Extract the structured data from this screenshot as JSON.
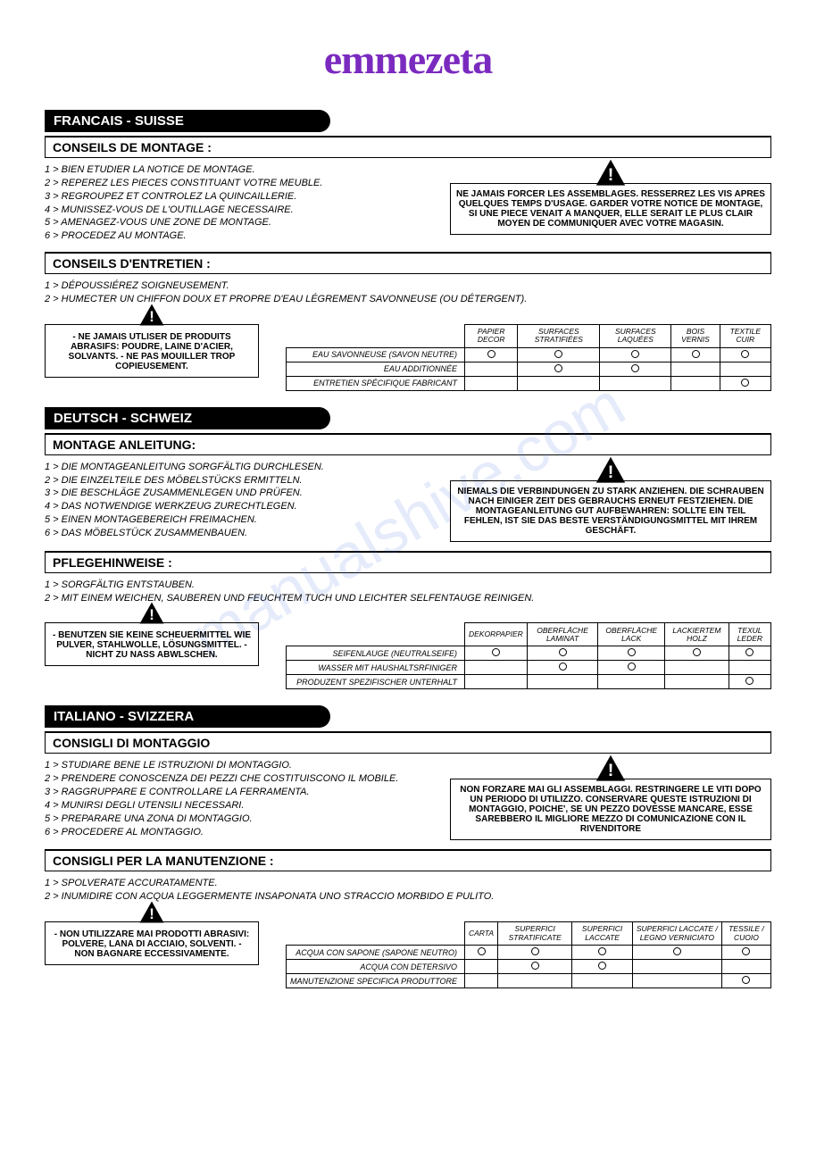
{
  "logo": "emmezeta",
  "watermark": "manualshive.com",
  "colors": {
    "brand": "#7b2abf",
    "black": "#000000",
    "bg": "#ffffff",
    "wm": "rgba(80,120,220,0.15)"
  },
  "langs": [
    {
      "title": "FRANCAIS - SUISSE",
      "sec1": "CONSEILS DE MONTAGE :",
      "tips": [
        "1 > BIEN ETUDIER LA NOTICE DE MONTAGE.",
        "2 > REPEREZ LES PIECES CONSTITUANT VOTRE MEUBLE.",
        "3 > REGROUPEZ ET CONTROLEZ LA QUINCAILLERIE.",
        "4 > MUNISSEZ-VOUS DE L'OUTILLAGE NECESSAIRE.",
        "5 > AMENAGEZ-VOUS UNE ZONE DE MONTAGE.",
        "6 > PROCEDEZ AU MONTAGE."
      ],
      "warn": "NE JAMAIS FORCER LES ASSEMBLAGES. RESSERREZ LES VIS APRES QUELQUES TEMPS D'USAGE. GARDER VOTRE NOTICE DE MONTAGE, SI UNE PIECE VENAIT A MANQUER, ELLE SERAIT LE PLUS CLAIR MOYEN DE COMMUNIQUER AVEC VOTRE MAGASIN.",
      "sec2": "CONSEILS D'ENTRETIEN :",
      "care_tips": [
        "1 > DÉPOUSSIÉREZ SOIGNEUSEMENT.",
        "2 > HUMECTER UN CHIFFON DOUX ET PROPRE D'EAU  LÉGREMENT SAVONNEUSE (OU DÉTERGENT)."
      ],
      "warn2": "- NE JAMAIS UTLISER DE PRODUITS ABRASIFS: POUDRE, LAINE D'ACIER, SOLVANTS. - NE PAS MOUILLER TROP COPIEUSEMENT.",
      "table": {
        "cols": [
          "PAPIER DECOR",
          "SURFACES STRATIFIÉES",
          "SURFACES LAQUÉES",
          "BOIS VERNIS",
          "TEXTILE CUIR"
        ],
        "rows": [
          {
            "label": "EAU SAVONNEUSE (SAVON NEUTRE)",
            "v": [
              1,
              1,
              1,
              1,
              1
            ]
          },
          {
            "label": "EAU ADDITIONNÉE",
            "v": [
              0,
              1,
              1,
              0,
              0
            ]
          },
          {
            "label": "ENTRETIEN SPÉCIFIQUE FABRICANT",
            "v": [
              0,
              0,
              0,
              0,
              1
            ]
          }
        ]
      }
    },
    {
      "title": "DEUTSCH - SCHWEIZ",
      "sec1": "MONTAGE ANLEITUNG:",
      "tips": [
        "1 > DIE MONTAGEANLEITUNG SORGFÄLTIG DURCHLESEN.",
        "2 > DIE EINZELTEILE DES MÖBELSTÜCKS ERMITTELN.",
        "3 > DIE BESCHLÄGE ZUSAMMENLEGEN UND PRÜFEN.",
        "4 > DAS NOTWENDIGE WERKZEUG ZURECHTLEGEN.",
        "5 > EINEN MONTAGEBEREICH FREIMACHEN.",
        "6 > DAS MÖBELSTÜCK ZUSAMMENBAUEN."
      ],
      "warn": "NIEMALS DIE VERBINDUNGEN ZU STARK ANZIEHEN. DIE SCHRAUBEN NACH EINIGER ZEIT DES GEBRAUCHS ERNEUT FESTZIEHEN. DIE MONTAGEANLEITUNG GUT AUFBEWAHREN: SOLLTE EIN TEIL FEHLEN, IST SIE DAS BESTE VERSTÄNDIGUNGSMITTEL MIT IHREM GESCHÄFT.",
      "sec2": "PFLEGEHINWEISE :",
      "care_tips": [
        "1 > SORGFÄLTIG ENTSTAUBEN.",
        "2 > MIT EINEM WEICHEN, SAUBEREN UND FEUCHTEM TUCH UND LEICHTER SELFENTAUGE REINIGEN."
      ],
      "warn2": "- BENUTZEN SIE KEINE SCHEUERMITTEL WIE PULVER, STAHLWOLLE, LÖSUNGSMITTEL. - NICHT ZU NASS ABWLSCHEN.",
      "table": {
        "cols": [
          "DEKORPAPIER",
          "OBERFLÄCHE LAMINAT",
          "OBERFLÄCHE LACK",
          "LACKIERTEM HOLZ",
          "TEXUL LEDER"
        ],
        "rows": [
          {
            "label": "SEIFENLAUGE (NEUTRALSEIFE)",
            "v": [
              1,
              1,
              1,
              1,
              1
            ]
          },
          {
            "label": "WASSER MIT HAUSHALTSRFINIGER",
            "v": [
              0,
              1,
              1,
              0,
              0
            ]
          },
          {
            "label": "PRODUZENT SPEZIFISCHER UNTERHALT",
            "v": [
              0,
              0,
              0,
              0,
              1
            ]
          }
        ]
      }
    },
    {
      "title": "ITALIANO - SVIZZERA",
      "sec1": "CONSIGLI DI MONTAGGIO",
      "tips": [
        "1 > STUDIARE BENE LE ISTRUZIONI DI MONTAGGIO.",
        "2 > PRENDERE CONOSCENZA DEI PEZZI CHE COSTITUISCONO IL MOBILE.",
        "3 > RAGGRUPPARE E CONTROLLARE LA FERRAMENTA.",
        "4 > MUNIRSI DEGLI UTENSILI NECESSARI.",
        "5 > PREPARARE UNA ZONA DI MONTAGGIO.",
        "6 > PROCEDERE AL MONTAGGIO."
      ],
      "warn": "NON FORZARE MAI GLI ASSEMBLAGGI. RESTRINGERE LE VITI DOPO UN PERIODO DI UTILIZZO. CONSERVARE QUESTE ISTRUZIONI DI MONTAGGIO, POICHE', SE UN PEZZO DOVESSE MANCARE, ESSE SAREBBERO IL MIGLIORE MEZZO DI COMUNICAZIONE CON IL RIVENDITORE",
      "sec2": "CONSIGLI PER LA MANUTENZIONE :",
      "care_tips": [
        "1 > SPOLVERATE ACCURATAMENTE.",
        "2 > INUMIDIRE CON ACQUA LEGGERMENTE INSAPONATA UNO STRACCIO MORBIDO E PULITO."
      ],
      "warn2": "- NON UTILIZZARE MAI PRODOTTI ABRASIVI: POLVERE, LANA DI ACCIAIO, SOLVENTI. - NON BAGNARE ECCESSIVAMENTE.",
      "table": {
        "cols": [
          "CARTA",
          "SUPERFICI STRATIFICATE",
          "SUPERFICI LACCATE",
          "SUPERFICI LACCATE / LEGNO VERNICIATO",
          "TESSILE / CUOIO"
        ],
        "rows": [
          {
            "label": "ACQUA CON SAPONE (SAPONE NEUTRO)",
            "v": [
              1,
              1,
              1,
              1,
              1
            ]
          },
          {
            "label": "ACQUA CON DETERSIVO",
            "v": [
              0,
              1,
              1,
              0,
              0
            ]
          },
          {
            "label": "MANUTENZIONE SPECIFICA PRODUTTORE",
            "v": [
              0,
              0,
              0,
              0,
              1
            ]
          }
        ]
      }
    }
  ]
}
